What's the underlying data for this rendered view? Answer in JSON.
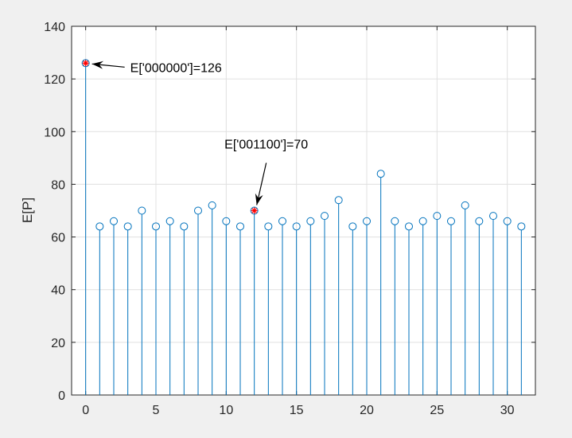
{
  "chart_data": {
    "type": "stem",
    "title": "",
    "xlabel": "",
    "ylabel": "E[P]",
    "xlim": [
      -1,
      32
    ],
    "ylim": [
      0,
      140
    ],
    "xticks": [
      0,
      5,
      10,
      15,
      20,
      25,
      30
    ],
    "yticks": [
      0,
      20,
      40,
      60,
      80,
      100,
      120,
      140
    ],
    "grid": true,
    "x": [
      0,
      1,
      2,
      3,
      4,
      5,
      6,
      7,
      8,
      9,
      10,
      11,
      12,
      13,
      14,
      15,
      16,
      17,
      18,
      19,
      20,
      21,
      22,
      23,
      24,
      25,
      26,
      27,
      28,
      29,
      30,
      31
    ],
    "values": [
      126,
      64,
      66,
      64,
      70,
      64,
      66,
      64,
      70,
      72,
      66,
      64,
      70,
      64,
      66,
      64,
      66,
      68,
      74,
      64,
      66,
      84,
      66,
      64,
      66,
      68,
      66,
      72,
      66,
      68,
      66,
      64
    ],
    "series_color": "#0072bd",
    "highlight_color": "#ff0000",
    "highlighted_points": [
      0,
      12
    ],
    "annotations": [
      {
        "x": 0,
        "y": 126,
        "text": "E['000000']=126"
      },
      {
        "x": 12,
        "y": 70,
        "text": "E['001100']=70"
      }
    ]
  }
}
